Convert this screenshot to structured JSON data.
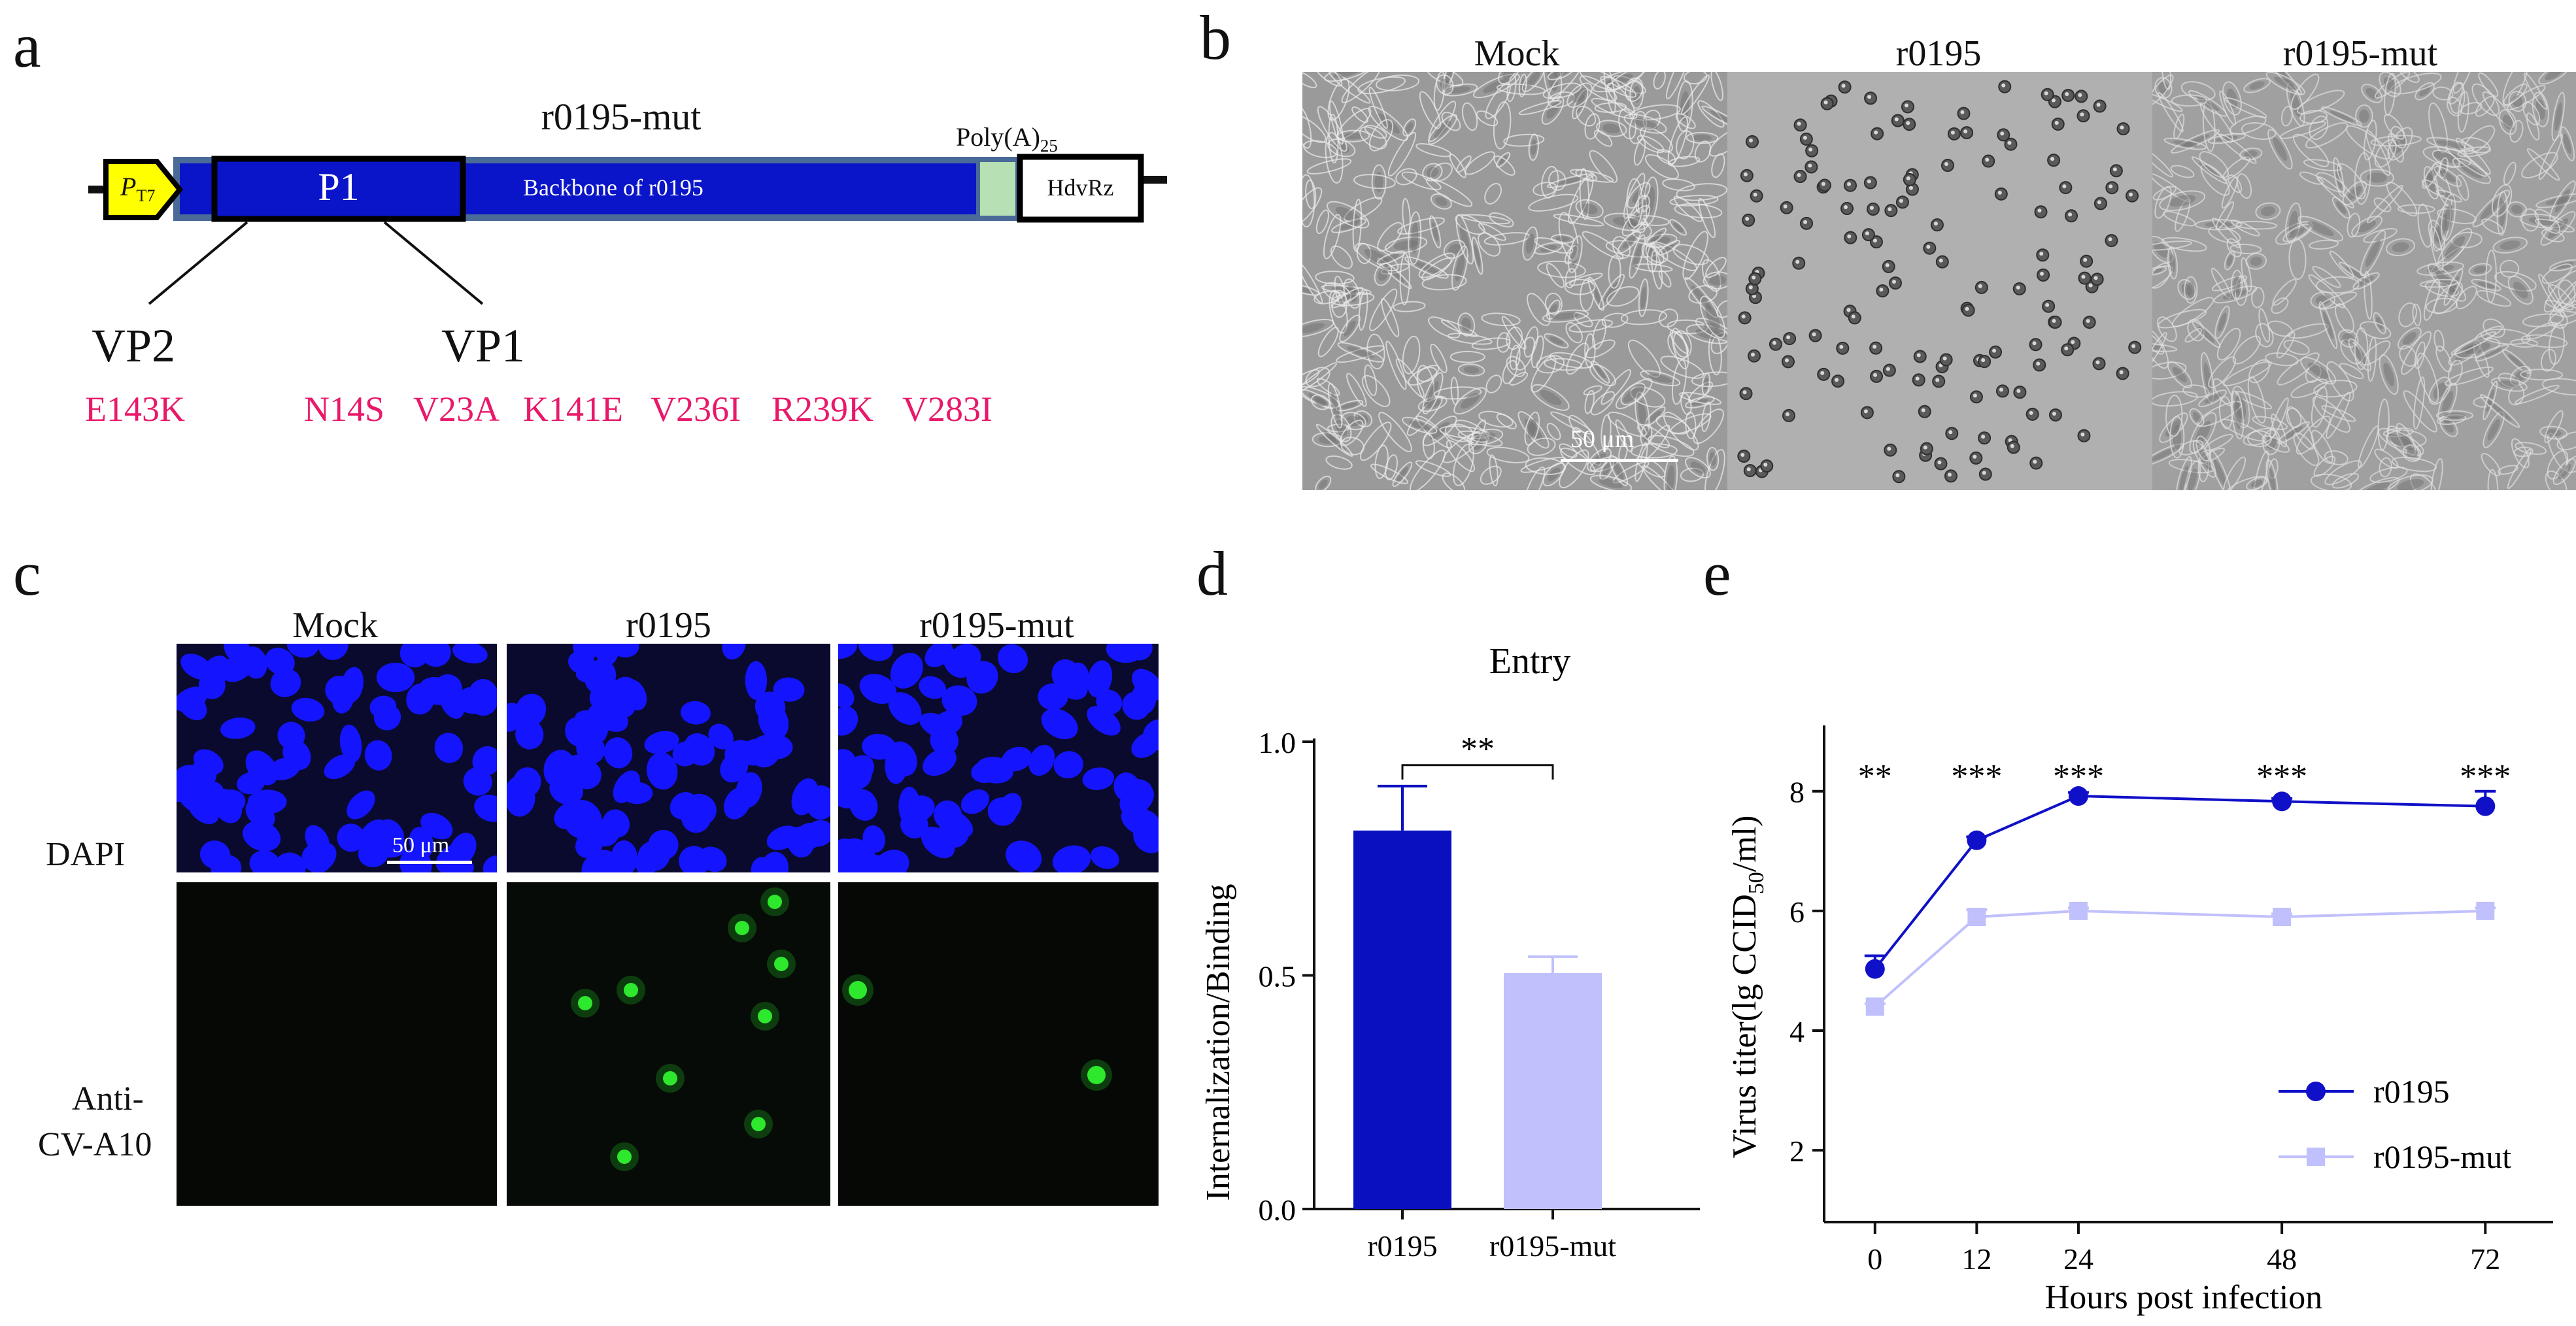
{
  "panels": {
    "a": "a",
    "b": "b",
    "c": "c",
    "d": "d",
    "e": "e"
  },
  "panel_a": {
    "construct_title": "r0195-mut",
    "promoter": "P",
    "promoter_sub": "T7",
    "p1_label": "P1",
    "backbone_label": "Backbone of r0195",
    "polya_label": "Poly(A)",
    "polya_sub": "25",
    "hdv_label": "HdvRz",
    "vp2_label": "VP2",
    "vp1_label": "VP1",
    "vp2_mutations": [
      "E143K"
    ],
    "vp1_mutations": [
      "N14S",
      "V23A",
      "K141E",
      "V236I",
      "R239K",
      "V283I"
    ],
    "colors": {
      "promoter": "#ffff00",
      "backbone": "#0a14c8",
      "backbone_border": "#4a6a98",
      "polya": "#b7e0b4",
      "mutation": "#e8196a"
    }
  },
  "panel_b": {
    "columns": [
      "Mock",
      "r0195",
      "r0195-mut"
    ],
    "scale_bar": "50 μm"
  },
  "panel_c": {
    "columns": [
      "Mock",
      "r0195",
      "r0195-mut"
    ],
    "row_dapi": "DAPI",
    "row_anti_1": "Anti-",
    "row_anti_2": "CV-A10",
    "scale_bar": "50 μm",
    "colors": {
      "dapi_bg": "#0a0a2e",
      "dapi_nucleus": "#1414ff",
      "green": "#2ee82e"
    }
  },
  "chart_data": [
    {
      "type": "bar",
      "title": "Entry",
      "ylabel": "Internalization/Binding",
      "categories": [
        "r0195",
        "r0195-mut"
      ],
      "values": [
        0.81,
        0.505
      ],
      "errors": [
        0.095,
        0.035
      ],
      "ylim": [
        0,
        1.0
      ],
      "yticks": [
        "0.0",
        "0.5",
        "1.0"
      ],
      "significance": "**",
      "colors": [
        "#0a10c0",
        "#c0c0fc"
      ]
    },
    {
      "type": "line",
      "title": "",
      "xlabel": "Hours post infection",
      "ylabel_main": "Virus titer(lg CCID",
      "ylabel_sub": "50",
      "ylabel_end": "/ml)",
      "x": [
        0,
        12,
        24,
        48,
        72
      ],
      "xticks": [
        "0",
        "12",
        "24",
        "48",
        "72"
      ],
      "yticks": [
        "2",
        "4",
        "6",
        "8"
      ],
      "ylim": [
        0.8,
        9.1
      ],
      "xlim": [
        -6,
        80
      ],
      "series": [
        {
          "name": "r0195",
          "values": [
            5.03,
            7.18,
            7.92,
            7.83,
            7.75
          ],
          "errors": [
            0.22,
            0.06,
            0.06,
            0.05,
            0.25
          ],
          "color": "#1010c8",
          "marker": "circle"
        },
        {
          "name": "r0195-mut",
          "values": [
            4.4,
            5.9,
            6.0,
            5.9,
            6.0
          ],
          "errors": [
            0.05,
            0.12,
            0.05,
            0.05,
            0.05
          ],
          "color": "#c0c0fc",
          "marker": "square"
        }
      ],
      "significance": [
        "**",
        "***",
        "***",
        "***",
        "***"
      ],
      "legend": "bottom-right"
    }
  ]
}
